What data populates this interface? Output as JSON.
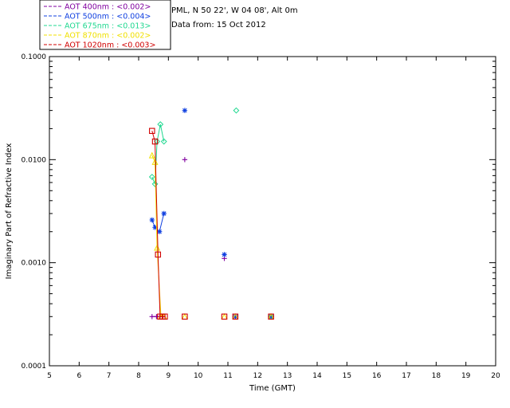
{
  "header": {
    "site": "PML, N 50 22', W 04 08', Alt 0m",
    "date": "Data from: 15 Oct 2012"
  },
  "legend": [
    {
      "label": "AOT  400nm : <0.002>",
      "color": "#8000a0"
    },
    {
      "label": "AOT  500nm : <0.004>",
      "color": "#1040e0"
    },
    {
      "label": "AOT  675nm : <0.013>",
      "color": "#20d890"
    },
    {
      "label": "AOT  870nm : <0.002>",
      "color": "#f0e000"
    },
    {
      "label": "AOT 1020nm : <0.003>",
      "color": "#d00000"
    }
  ],
  "chart_data": {
    "type": "scatter",
    "xlabel": "Time (GMT)",
    "ylabel": "Imaginary Part of Refractive Index",
    "xlim": [
      5,
      20
    ],
    "ylim": [
      0.0001,
      0.1
    ],
    "yscale": "log",
    "x_ticks": [
      "5",
      "6",
      "7",
      "8",
      "9",
      "10",
      "11",
      "12",
      "13",
      "14",
      "15",
      "16",
      "17",
      "18",
      "19",
      "20"
    ],
    "y_ticks": [
      "0.0001",
      "0.0010",
      "0.0100",
      "0.1000"
    ],
    "series": [
      {
        "name": "AOT  400nm",
        "color": "#8000a0",
        "marker": "plus",
        "points": [
          [
            8.45,
            0.0003
          ],
          [
            8.6,
            0.0003
          ],
          [
            8.72,
            0.0003
          ],
          [
            8.82,
            0.0003
          ],
          [
            9.55,
            0.01
          ],
          [
            10.88,
            0.0011
          ],
          [
            11.25,
            0.0003
          ],
          [
            12.45,
            0.0003
          ]
        ]
      },
      {
        "name": "AOT  500nm",
        "color": "#1040e0",
        "marker": "star",
        "points": [
          [
            8.45,
            0.0026
          ],
          [
            8.55,
            0.0022
          ],
          [
            8.7,
            0.002
          ],
          [
            8.85,
            0.003
          ],
          [
            9.55,
            0.03
          ],
          [
            10.88,
            0.0012
          ],
          [
            11.25,
            0.0003
          ],
          [
            12.45,
            0.0003
          ]
        ]
      },
      {
        "name": "AOT  675nm",
        "color": "#20d890",
        "marker": "diamond",
        "points": [
          [
            8.45,
            0.0068
          ],
          [
            8.55,
            0.0058
          ],
          [
            8.62,
            0.015
          ],
          [
            8.73,
            0.022
          ],
          [
            8.85,
            0.015
          ],
          [
            11.28,
            0.03
          ],
          [
            12.45,
            0.0003
          ]
        ]
      },
      {
        "name": "AOT  870nm",
        "color": "#f0e000",
        "marker": "triangle",
        "points": [
          [
            8.45,
            0.011
          ],
          [
            8.55,
            0.0095
          ],
          [
            8.62,
            0.0014
          ],
          [
            8.75,
            0.0003
          ],
          [
            8.85,
            0.0003
          ],
          [
            9.55,
            0.0003
          ],
          [
            10.88,
            0.0003
          ],
          [
            11.25,
            0.0003
          ],
          [
            12.45,
            0.0003
          ]
        ]
      },
      {
        "name": "AOT 1020nm",
        "color": "#d00000",
        "marker": "square",
        "points": [
          [
            8.45,
            0.019
          ],
          [
            8.55,
            0.015
          ],
          [
            8.65,
            0.0012
          ],
          [
            8.72,
            0.0003
          ],
          [
            8.8,
            0.0003
          ],
          [
            8.88,
            0.0003
          ],
          [
            9.55,
            0.0003
          ],
          [
            10.88,
            0.0003
          ],
          [
            11.25,
            0.0003
          ],
          [
            12.45,
            0.0003
          ]
        ]
      }
    ]
  }
}
